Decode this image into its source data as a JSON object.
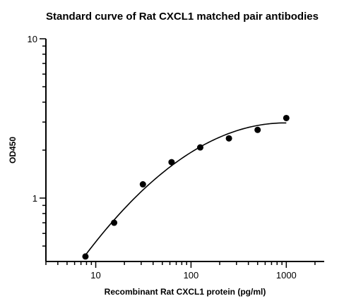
{
  "chart_data": {
    "type": "scatter",
    "title": "Standard curve of Rat CXCL1 matched pair antibodies",
    "xlabel": "Recombinant Rat CXCL1 protein (pg/ml)",
    "ylabel": "OD450",
    "x_scale": "log",
    "y_scale": "log",
    "xlim": [
      3,
      2500
    ],
    "ylim": [
      0.4,
      10
    ],
    "x_ticks": [
      10,
      100,
      1000
    ],
    "x_tick_labels": [
      "10",
      "100",
      "1000"
    ],
    "y_ticks": [
      1,
      10
    ],
    "y_tick_labels": [
      "1",
      "10"
    ],
    "grid": false,
    "legend": "none",
    "series": [
      {
        "x": [
          7.8,
          15.6,
          31.25,
          62.5,
          125,
          250,
          500,
          1000
        ],
        "y": [
          0.43,
          0.7,
          1.22,
          1.68,
          2.08,
          2.37,
          2.68,
          3.18
        ],
        "fit_curve": true
      }
    ]
  }
}
